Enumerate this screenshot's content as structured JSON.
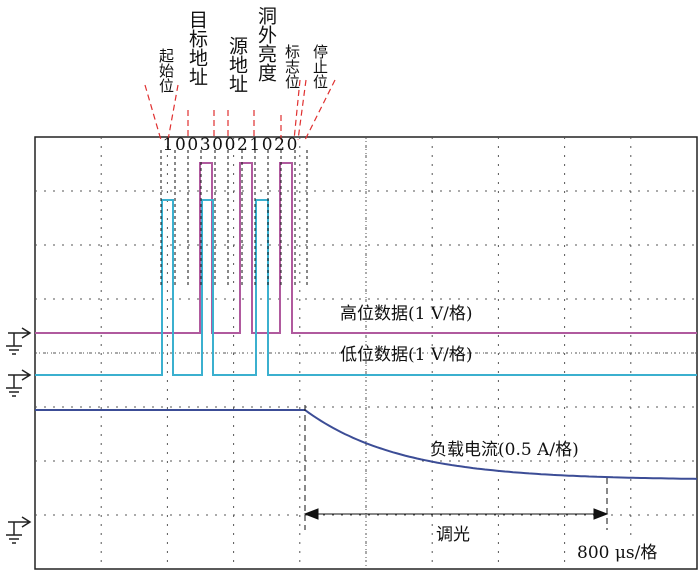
{
  "fields": [
    "起始位",
    "目标地址",
    "源地址",
    "洞外亮度",
    "标志位",
    "停止位"
  ],
  "bits": [
    "1",
    "0",
    "0",
    "3",
    "0",
    "0",
    "2",
    "1",
    "0",
    "2",
    "0"
  ],
  "traces": {
    "high": "高位数据(1 V/格)",
    "low": "低位数据(1 V/格)",
    "current": "负载电流(0.5 A/格)"
  },
  "dimming": "调光",
  "timebase": "800 μs/格"
}
